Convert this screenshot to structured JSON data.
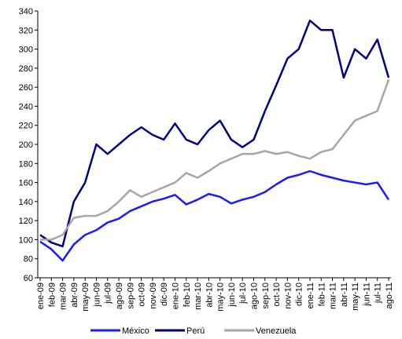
{
  "chart_data": {
    "type": "line",
    "categories": [
      "ene-09",
      "feb-09",
      "mar-09",
      "abr-09",
      "may-09",
      "jun-09",
      "jul-09",
      "ago-09",
      "sep-09",
      "oct-09",
      "nov-09",
      "dic-09",
      "ene-10",
      "feb-10",
      "mar-10",
      "abr-10",
      "may-10",
      "jun-10",
      "jul-10",
      "ago-10",
      "sep-10",
      "oct-10",
      "nov-10",
      "dic-10",
      "ene-11",
      "feb-11",
      "mar-11",
      "abr-11",
      "may-11",
      "jun-11",
      "jul-11",
      "ago-11"
    ],
    "series": [
      {
        "name": "México",
        "color": "#1a1aff",
        "values": [
          98,
          90,
          78,
          95,
          105,
          110,
          118,
          122,
          130,
          135,
          140,
          143,
          147,
          137,
          142,
          148,
          145,
          138,
          142,
          145,
          150,
          158,
          165,
          168,
          172,
          168,
          165,
          162,
          160,
          158,
          160,
          142
        ]
      },
      {
        "name": "Perú",
        "color": "#000080",
        "values": [
          105,
          97,
          93,
          140,
          160,
          200,
          190,
          200,
          210,
          218,
          210,
          205,
          222,
          205,
          200,
          215,
          225,
          205,
          197,
          205,
          235,
          262,
          290,
          300,
          330,
          320,
          320,
          270,
          300,
          290,
          310,
          270
        ]
      },
      {
        "name": "Venezuela",
        "color": "#a6a6a6",
        "values": [
          100,
          100,
          105,
          123,
          125,
          125,
          130,
          140,
          152,
          145,
          150,
          155,
          160,
          170,
          165,
          172,
          180,
          185,
          190,
          190,
          193,
          190,
          192,
          188,
          185,
          192,
          195,
          210,
          225,
          230,
          235,
          268
        ]
      }
    ],
    "ylim": [
      60,
      340
    ],
    "yticks": [
      60,
      80,
      100,
      120,
      140,
      160,
      180,
      200,
      220,
      240,
      260,
      280,
      300,
      320,
      340
    ],
    "legend": "bottom"
  }
}
